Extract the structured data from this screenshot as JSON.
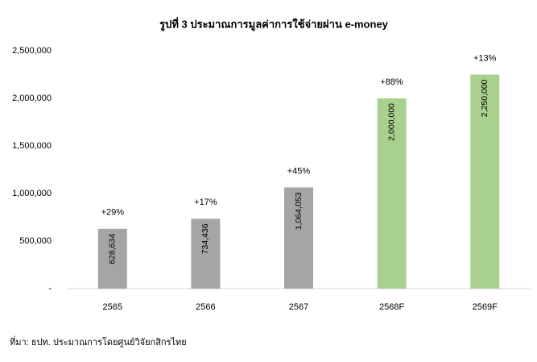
{
  "chart_data": {
    "type": "bar",
    "title": "รูปที่ 3 ประมาณการมูลค่าการใช้จ่ายผ่าน e-money",
    "categories": [
      "2565",
      "2566",
      "2567",
      "2568F",
      "2569F"
    ],
    "values": [
      628634,
      734436,
      1064053,
      2000000,
      2250000
    ],
    "value_labels": [
      "628,634",
      "734,436",
      "1,064,053",
      "2,000,000",
      "2,250,000"
    ],
    "colors": [
      "#a5a5a5",
      "#a5a5a5",
      "#a5a5a5",
      "#a9d18e",
      "#a9d18e"
    ],
    "annotations": [
      "+29%",
      "+17%",
      "+45%",
      "+88%",
      "+13%"
    ],
    "ylim": [
      0,
      2500000
    ],
    "yticks": [
      {
        "value": 0,
        "label": "-"
      },
      {
        "value": 500000,
        "label": "500,000"
      },
      {
        "value": 1000000,
        "label": "1,000,000"
      },
      {
        "value": 1500000,
        "label": "1,500,000"
      },
      {
        "value": 2000000,
        "label": "2,000,000"
      },
      {
        "value": 2500000,
        "label": "2,500,000"
      }
    ],
    "grid": false
  },
  "source": "ที่มา: ธปท. ประมาณการโดยศูนย์วิจัยกสิกรไทย"
}
